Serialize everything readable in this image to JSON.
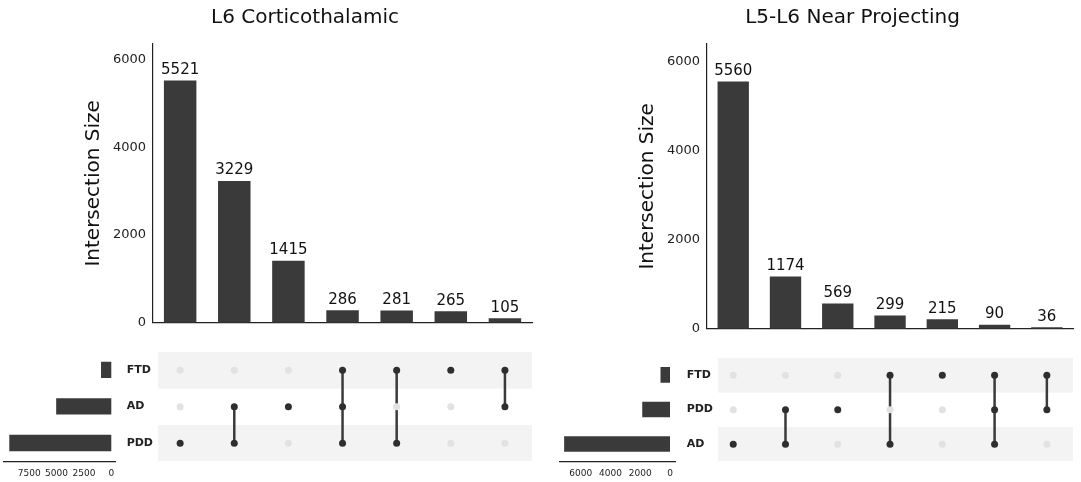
{
  "chart_data": [
    {
      "type": "bar",
      "title": "L6 Corticothalamic",
      "ylabel": "Intersection Size",
      "categories": [
        null,
        null,
        null,
        null,
        null,
        null,
        null
      ],
      "values": [
        5521,
        3229,
        1415,
        286,
        281,
        265,
        105
      ],
      "color": "#3a3a3a",
      "ylim": [
        0,
        6350
      ],
      "yticks": [
        0,
        2000,
        4000,
        6000
      ],
      "grid": false,
      "data_labels": true
    },
    {
      "type": "bar",
      "orientation": "horizontal",
      "categories": [
        "FTD",
        "AD",
        "PDD"
      ],
      "values": [
        937,
        5035,
        9317
      ],
      "color": "#3a3a3a",
      "xlim": [
        9800,
        -400
      ],
      "xticks": [
        7500,
        5000,
        2500,
        0
      ],
      "grid": false
    },
    {
      "type": "bar",
      "title": "L5-L6 Near Projecting",
      "ylabel": "Intersection Size",
      "categories": [
        null,
        null,
        null,
        null,
        null,
        null,
        null
      ],
      "values": [
        5560,
        1174,
        569,
        299,
        215,
        90,
        36
      ],
      "color": "#3a3a3a",
      "ylim": [
        0,
        6400
      ],
      "yticks": [
        0,
        2000,
        4000,
        6000
      ],
      "grid": false,
      "data_labels": true
    },
    {
      "type": "bar",
      "orientation": "horizontal",
      "categories": [
        "FTD",
        "PDD",
        "AD"
      ],
      "values": [
        640,
        1869,
        7123
      ],
      "color": "#3a3a3a",
      "xlim": [
        7400,
        -380
      ],
      "xticks": [
        6000,
        4000,
        2000,
        0
      ],
      "grid": false
    }
  ]
}
